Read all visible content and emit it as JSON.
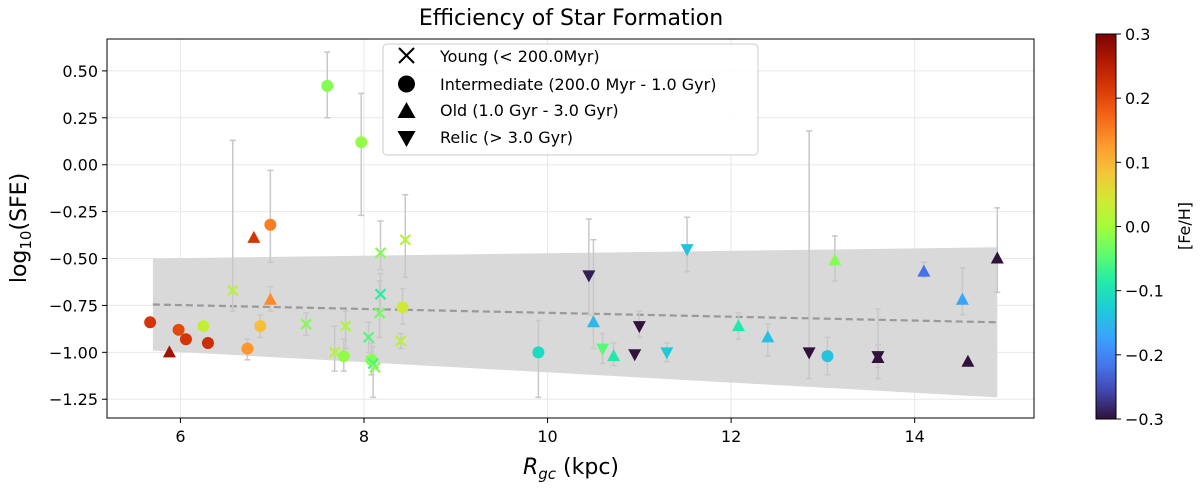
{
  "chart_data": {
    "type": "scatter",
    "title": "Efficiency of Star Formation",
    "xlabel_base": "R",
    "xlabel_sub": "gc",
    "xlabel_unit": " (kpc)",
    "ylabel_base": "log",
    "ylabel_sub": "10",
    "ylabel_rest": "(SFE)",
    "xlim": [
      5.2,
      15.3
    ],
    "ylim": [
      -1.35,
      0.67
    ],
    "xticks": [
      6,
      8,
      10,
      12,
      14
    ],
    "yticks": [
      -1.25,
      -1.0,
      -0.75,
      -0.5,
      -0.25,
      0.0,
      0.25,
      0.5
    ],
    "ytick_labels": [
      "−1.25",
      "−1.00",
      "−0.75",
      "−0.50",
      "−0.25",
      "0.00",
      "0.25",
      "0.50"
    ],
    "grid": true,
    "legend_position": "top-center",
    "legend": [
      {
        "marker": "x",
        "label": "Young (< 200.0Myr)"
      },
      {
        "marker": "o",
        "label": "Intermediate (200.0 Myr - 1.0 Gyr)"
      },
      {
        "marker": "^",
        "label": "Old (1.0 Gyr - 3.0 Gyr)"
      },
      {
        "marker": "v",
        "label": "Relic (> 3.0 Gyr)"
      }
    ],
    "colorbar": {
      "label": "[Fe/H]",
      "range": [
        -0.3,
        0.3
      ],
      "ticks": [
        0.3,
        0.2,
        0.1,
        0.0,
        -0.1,
        -0.2,
        -0.3
      ],
      "tick_labels": [
        "0.3",
        "0.2",
        "0.1",
        "0.0",
        "−0.1",
        "−0.2",
        "−0.3"
      ],
      "colormap": "turbo"
    },
    "fit_line": {
      "x": [
        5.7,
        14.9
      ],
      "y": [
        -0.745,
        -0.84
      ],
      "color": "#999999",
      "style": "dashed"
    },
    "confidence_band": {
      "x": [
        5.7,
        14.9
      ],
      "upper": [
        -0.5,
        -0.44
      ],
      "lower": [
        -0.99,
        -1.24
      ],
      "color": "#d9d9d9"
    },
    "points": [
      {
        "x": 5.67,
        "y": -0.84,
        "m": "o",
        "feh": 0.22
      },
      {
        "x": 5.88,
        "y": -1.0,
        "m": "^",
        "feh": 0.27
      },
      {
        "x": 5.98,
        "y": -0.88,
        "m": "o",
        "feh": 0.2
      },
      {
        "x": 6.06,
        "y": -0.93,
        "m": "o",
        "feh": 0.22
      },
      {
        "x": 6.25,
        "y": -0.86,
        "m": "o",
        "feh": 0.03
      },
      {
        "x": 6.3,
        "y": -0.95,
        "m": "o",
        "feh": 0.23
      },
      {
        "x": 6.57,
        "y": -0.67,
        "m": "x",
        "feh": 0.02,
        "ylo": -0.78,
        "yhi": 0.13
      },
      {
        "x": 6.73,
        "y": -0.98,
        "m": "o",
        "feh": 0.13,
        "ylo": -1.04,
        "yhi": -0.93
      },
      {
        "x": 6.8,
        "y": -0.39,
        "m": "^",
        "feh": 0.22
      },
      {
        "x": 6.87,
        "y": -0.86,
        "m": "o",
        "feh": 0.09,
        "ylo": -0.92,
        "yhi": -0.8
      },
      {
        "x": 6.98,
        "y": -0.72,
        "m": "^",
        "feh": 0.14,
        "ylo": -0.78,
        "yhi": -0.65
      },
      {
        "x": 6.98,
        "y": -0.32,
        "m": "o",
        "feh": 0.15,
        "ylo": -0.52,
        "yhi": -0.03
      },
      {
        "x": 7.37,
        "y": -0.85,
        "m": "x",
        "feh": -0.02,
        "ylo": -0.91,
        "yhi": -0.79
      },
      {
        "x": 7.6,
        "y": 0.42,
        "m": "o",
        "feh": -0.02,
        "ylo": 0.25,
        "yhi": 0.6
      },
      {
        "x": 7.68,
        "y": -1.0,
        "m": "x",
        "feh": 0.01,
        "ylo": -1.1,
        "yhi": -0.86
      },
      {
        "x": 7.78,
        "y": -1.02,
        "m": "o",
        "feh": -0.01,
        "ylo": -1.1,
        "yhi": -0.93
      },
      {
        "x": 7.8,
        "y": -0.86,
        "m": "x",
        "feh": 0.01,
        "ylo": -0.98,
        "yhi": -0.78
      },
      {
        "x": 7.97,
        "y": 0.12,
        "m": "o",
        "feh": -0.01,
        "ylo": -0.27,
        "yhi": 0.38
      },
      {
        "x": 8.05,
        "y": -0.92,
        "m": "x",
        "feh": -0.05,
        "ylo": -1.0,
        "yhi": -0.84
      },
      {
        "x": 8.08,
        "y": -1.04,
        "m": "o",
        "feh": -0.02,
        "ylo": -1.12,
        "yhi": -0.95
      },
      {
        "x": 8.1,
        "y": -1.06,
        "m": "x",
        "feh": -0.06,
        "ylo": -1.24,
        "yhi": -0.97
      },
      {
        "x": 8.12,
        "y": -1.08,
        "m": "x",
        "feh": -0.02
      },
      {
        "x": 8.17,
        "y": -0.79,
        "m": "x",
        "feh": -0.03,
        "ylo": -0.92,
        "yhi": -0.62
      },
      {
        "x": 8.18,
        "y": -0.69,
        "m": "x",
        "feh": -0.08,
        "ylo": -0.78,
        "yhi": -0.58
      },
      {
        "x": 8.18,
        "y": -0.47,
        "m": "x",
        "feh": -0.02,
        "ylo": -0.56,
        "yhi": -0.3
      },
      {
        "x": 8.4,
        "y": -0.94,
        "m": "x",
        "feh": 0.02,
        "ylo": -0.98,
        "yhi": -0.9
      },
      {
        "x": 8.42,
        "y": -0.76,
        "m": "o",
        "feh": 0.04,
        "ylo": -0.85,
        "yhi": -0.66
      },
      {
        "x": 8.45,
        "y": -0.4,
        "m": "x",
        "feh": 0.02,
        "ylo": -0.6,
        "yhi": -0.16
      },
      {
        "x": 9.9,
        "y": -1.0,
        "m": "o",
        "feh": -0.11,
        "ylo": -1.24,
        "yhi": -0.83
      },
      {
        "x": 10.45,
        "y": -0.59,
        "m": "v",
        "feh": -0.29,
        "ylo": -0.8,
        "yhi": -0.29
      },
      {
        "x": 10.5,
        "y": -0.84,
        "m": "^",
        "feh": -0.15,
        "ylo": -0.98,
        "yhi": -0.4
      },
      {
        "x": 10.6,
        "y": -0.98,
        "m": "v",
        "feh": -0.05,
        "ylo": -1.06,
        "yhi": -0.9
      },
      {
        "x": 10.72,
        "y": -1.02,
        "m": "^",
        "feh": -0.09,
        "ylo": -1.07,
        "yhi": -0.95
      },
      {
        "x": 10.95,
        "y": -1.01,
        "m": "v",
        "feh": -0.3
      },
      {
        "x": 11.0,
        "y": -0.86,
        "m": "v",
        "feh": -0.3,
        "ylo": -0.92,
        "yhi": -0.78
      },
      {
        "x": 11.3,
        "y": -1.0,
        "m": "v",
        "feh": -0.13,
        "ylo": -1.05,
        "yhi": -0.95
      },
      {
        "x": 11.52,
        "y": -0.45,
        "m": "v",
        "feh": -0.14,
        "ylo": -0.57,
        "yhi": -0.28
      },
      {
        "x": 12.08,
        "y": -0.86,
        "m": "^",
        "feh": -0.09,
        "ylo": -0.93,
        "yhi": -0.79
      },
      {
        "x": 12.4,
        "y": -0.92,
        "m": "^",
        "feh": -0.14,
        "ylo": -1.02,
        "yhi": -0.85
      },
      {
        "x": 12.85,
        "y": -1.0,
        "m": "v",
        "feh": -0.3,
        "ylo": -1.14,
        "yhi": 0.18
      },
      {
        "x": 13.05,
        "y": -1.02,
        "m": "o",
        "feh": -0.14,
        "ylo": -1.12,
        "yhi": -0.92
      },
      {
        "x": 13.13,
        "y": -0.51,
        "m": "^",
        "feh": -0.02,
        "ylo": -0.62,
        "yhi": -0.38
      },
      {
        "x": 13.6,
        "y": -1.02,
        "m": "v",
        "feh": -0.3,
        "ylo": -1.14,
        "yhi": -0.77
      },
      {
        "x": 13.6,
        "y": -1.03,
        "m": "^",
        "feh": -0.3,
        "ylo": -1.08,
        "yhi": -0.96
      },
      {
        "x": 14.1,
        "y": -0.57,
        "m": "^",
        "feh": -0.22,
        "ylo": -0.6,
        "yhi": -0.52
      },
      {
        "x": 14.52,
        "y": -0.72,
        "m": "^",
        "feh": -0.17,
        "ylo": -0.8,
        "yhi": -0.55
      },
      {
        "x": 14.58,
        "y": -1.05,
        "m": "^",
        "feh": -0.3
      },
      {
        "x": 14.9,
        "y": -0.5,
        "m": "^",
        "feh": -0.3,
        "ylo": -0.68,
        "yhi": -0.23
      }
    ]
  }
}
